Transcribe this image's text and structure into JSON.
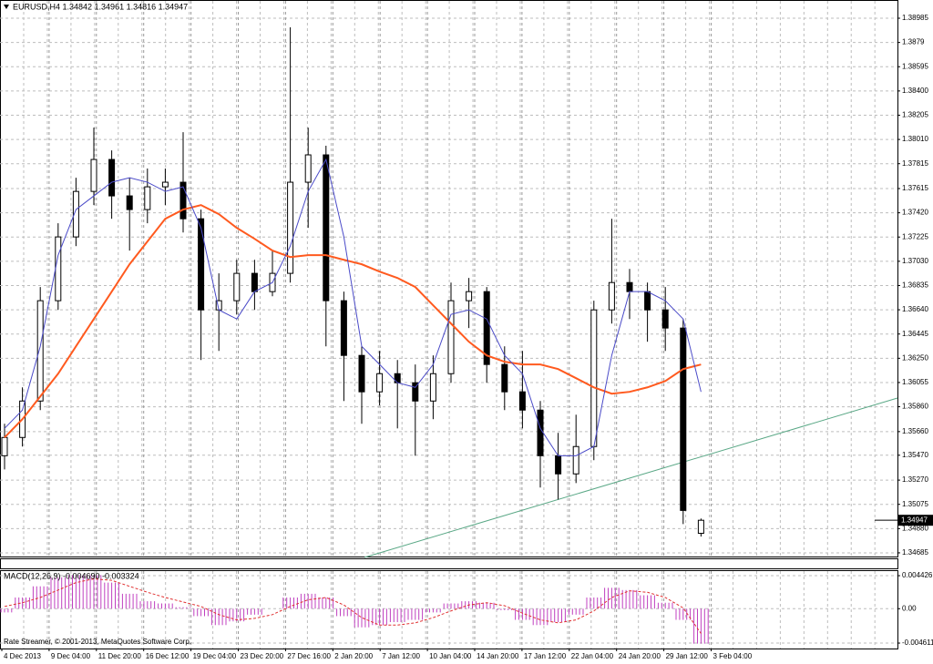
{
  "chart_data": {
    "type": "candlestick",
    "title": "EURUSD,H4  1.34842 1.34961 1.34816 1.34947",
    "candles": [
      [
        1.35466,
        1.35723,
        1.35356,
        1.35613
      ],
      [
        1.35613,
        1.36016,
        1.3554,
        1.35906
      ],
      [
        1.35906,
        1.36823,
        1.35833,
        1.36713
      ],
      [
        1.36713,
        1.37336,
        1.36639,
        1.37226
      ],
      [
        1.37226,
        1.37702,
        1.37152,
        1.37592
      ],
      [
        1.37592,
        1.38105,
        1.37482,
        1.37849
      ],
      [
        1.37849,
        1.37922,
        1.37372,
        1.37556
      ],
      [
        1.37556,
        1.37702,
        1.37116,
        1.37446
      ],
      [
        1.37446,
        1.37776,
        1.37336,
        1.37629
      ],
      [
        1.37629,
        1.37776,
        1.37482,
        1.37666
      ],
      [
        1.37666,
        1.38068,
        1.37262,
        1.37372
      ],
      [
        1.37372,
        1.37446,
        1.36236,
        1.36639
      ],
      [
        1.36639,
        1.36933,
        1.36309,
        1.36713
      ],
      [
        1.36713,
        1.37042,
        1.36603,
        1.36933
      ],
      [
        1.36933,
        1.37042,
        1.36639,
        1.36786
      ],
      [
        1.36786,
        1.37116,
        1.36749,
        1.36933
      ],
      [
        1.36933,
        1.38912,
        1.36859,
        1.37666
      ],
      [
        1.37666,
        1.38105,
        1.37299,
        1.37886
      ],
      [
        1.37886,
        1.37959,
        1.36346,
        1.36713
      ],
      [
        1.36713,
        1.36786,
        1.35906,
        1.36273
      ],
      [
        1.36273,
        1.36346,
        1.35723,
        1.3598
      ],
      [
        1.3598,
        1.36309,
        1.3587,
        1.36126
      ],
      [
        1.36126,
        1.36236,
        1.35686,
        1.36053
      ],
      [
        1.36053,
        1.362,
        1.35466,
        1.35906
      ],
      [
        1.35906,
        1.36273,
        1.3576,
        1.36126
      ],
      [
        1.36126,
        1.36859,
        1.36053,
        1.36713
      ],
      [
        1.36713,
        1.36896,
        1.36493,
        1.36786
      ],
      [
        1.36786,
        1.36823,
        1.36053,
        1.362
      ],
      [
        1.362,
        1.36346,
        1.35833,
        1.3598
      ],
      [
        1.3598,
        1.36309,
        1.35686,
        1.35833
      ],
      [
        1.35833,
        1.35906,
        1.3521,
        1.35466
      ],
      [
        1.35466,
        1.3565,
        1.35114,
        1.3532
      ],
      [
        1.3532,
        1.35796,
        1.35246,
        1.3554
      ],
      [
        1.3554,
        1.36713,
        1.3543,
        1.36639
      ],
      [
        1.36639,
        1.37372,
        1.36529,
        1.36859
      ],
      [
        1.36859,
        1.36969,
        1.36566,
        1.36786
      ],
      [
        1.36786,
        1.36859,
        1.36383,
        1.36639
      ],
      [
        1.36639,
        1.36823,
        1.36309,
        1.36493
      ],
      [
        1.36493,
        1.36566,
        1.34916,
        1.35026
      ],
      [
        1.34842,
        1.34961,
        1.34816,
        1.34947
      ]
    ],
    "candle_color": "#000000",
    "ylim": [
      1.34648,
      1.39073
    ],
    "yticks": [
      1.38985,
      1.3879,
      1.38595,
      {
        "value": 1.384,
        "label": "1.38400"
      },
      1.38205,
      {
        "value": 1.3801,
        "label": "1.38010"
      },
      1.37815,
      1.37615,
      {
        "value": 1.3742,
        "label": "1.37420"
      },
      1.37225,
      {
        "value": 1.3703,
        "label": "1.37030"
      },
      1.36835,
      {
        "value": 1.3664,
        "label": "1.36640"
      },
      1.36445,
      {
        "value": 1.3625,
        "label": "1.36250"
      },
      1.36055,
      {
        "value": 1.3586,
        "label": "1.35860"
      },
      {
        "value": 1.3566,
        "label": "1.35660"
      },
      {
        "value": 1.3547,
        "label": "1.35470"
      },
      {
        "value": 1.3527,
        "label": "1.35270"
      },
      1.35075,
      {
        "value": 1.3488,
        "label": "1.34880"
      },
      1.34685
    ],
    "grid": true,
    "ma_fast": {
      "color": "#4a4ac8",
      "values": [
        1.35686,
        1.35833,
        1.36346,
        1.37079,
        1.37446,
        1.37556,
        1.37666,
        1.37702,
        1.37666,
        1.37592,
        1.37629,
        1.37299,
        1.36639,
        1.36566,
        1.36786,
        1.36859,
        1.37152,
        1.37592,
        1.37849,
        1.37226,
        1.36346,
        1.362,
        1.36053,
        1.36016,
        1.362,
        1.36603,
        1.36639,
        1.36566,
        1.36273,
        1.36126,
        1.35686,
        1.35466,
        1.35466,
        1.3554,
        1.36273,
        1.36786,
        1.36786,
        1.36713,
        1.36566,
        1.3598
      ]
    },
    "ma_slow": {
      "color": "#ff5a1f",
      "values": [
        1.35613,
        1.3576,
        1.35943,
        1.36126,
        1.36346,
        1.36566,
        1.36786,
        1.37006,
        1.37189,
        1.37372,
        1.37446,
        1.37482,
        1.37409,
        1.37299,
        1.37211,
        1.37116,
        1.37064,
        1.37079,
        1.37079,
        1.37042,
        1.37006,
        1.36947,
        1.36896,
        1.36823,
        1.36676,
        1.36529,
        1.36383,
        1.36273,
        1.36222,
        1.362,
        1.362,
        1.36163,
        1.3609,
        1.36016,
        1.35965,
        1.3598,
        1.36016,
        1.36067,
        1.36163,
        1.362
      ]
    },
    "x_labels": [
      "4 Dec 2013",
      "9 Dec 04:00",
      "11 Dec 20:00",
      "16 Dec 12:00",
      "19 Dec 04:00",
      "23 Dec 20:00",
      "27 Dec 16:00",
      "2 Jan 20:00",
      "7 Jan 12:00",
      "10 Jan 04:00",
      "14 Jan 20:00",
      "17 Jan 12:00",
      "22 Jan 04:00",
      "24 Jan 20:00",
      "29 Jan 12:00",
      "3 Feb 04:00"
    ],
    "macd": {
      "title": "MACD(12,26,9) -0.004690 -0.003324",
      "color": "#c040c0",
      "signal_color": "#e03030",
      "values": [
        -0.0005,
        0.0015,
        0.003,
        0.0042,
        0.0045,
        0.0045,
        0.0035,
        0.002,
        0.001,
        0.0007,
        0.0002,
        -0.001,
        -0.0022,
        -0.0017,
        -0.0008,
        0,
        0.0015,
        0.002,
        0.0015,
        -0.001,
        -0.0025,
        -0.0022,
        -0.0018,
        -0.0015,
        -0.0005,
        0.0007,
        0.001,
        0.0008,
        -0.0002,
        -0.0015,
        -0.0022,
        -0.0018,
        -0.0008,
        0.0015,
        0.0028,
        0.0025,
        0.0018,
        0.0008,
        -0.0015,
        -0.00469
      ],
      "signal": [
        0.0003,
        0.0008,
        0.0015,
        0.0025,
        0.0035,
        0.004,
        0.0038,
        0.003,
        0.0022,
        0.0015,
        0.0009,
        0.0003,
        -0.0008,
        -0.0015,
        -0.0013,
        -0.0008,
        0.0003,
        0.0012,
        0.0015,
        0.0005,
        -0.0012,
        -0.0022,
        -0.0022,
        -0.0019,
        -0.0012,
        -0.0003,
        0.0005,
        0.0008,
        0.0004,
        -0.0006,
        -0.0015,
        -0.0019,
        -0.0015,
        -0.0003,
        0.0015,
        0.0024,
        0.0022,
        0.0015,
        0.0001,
        -0.003324
      ],
      "ylim": [
        -0.00534,
        0.00504
      ],
      "yticks": [
        0.004426,
        {
          "value": 0,
          "label": "0.00"
        },
        -0.004611
      ]
    },
    "footer": "Rate Streamer, © 2001-2013, MetaQuotes Software Corp."
  }
}
